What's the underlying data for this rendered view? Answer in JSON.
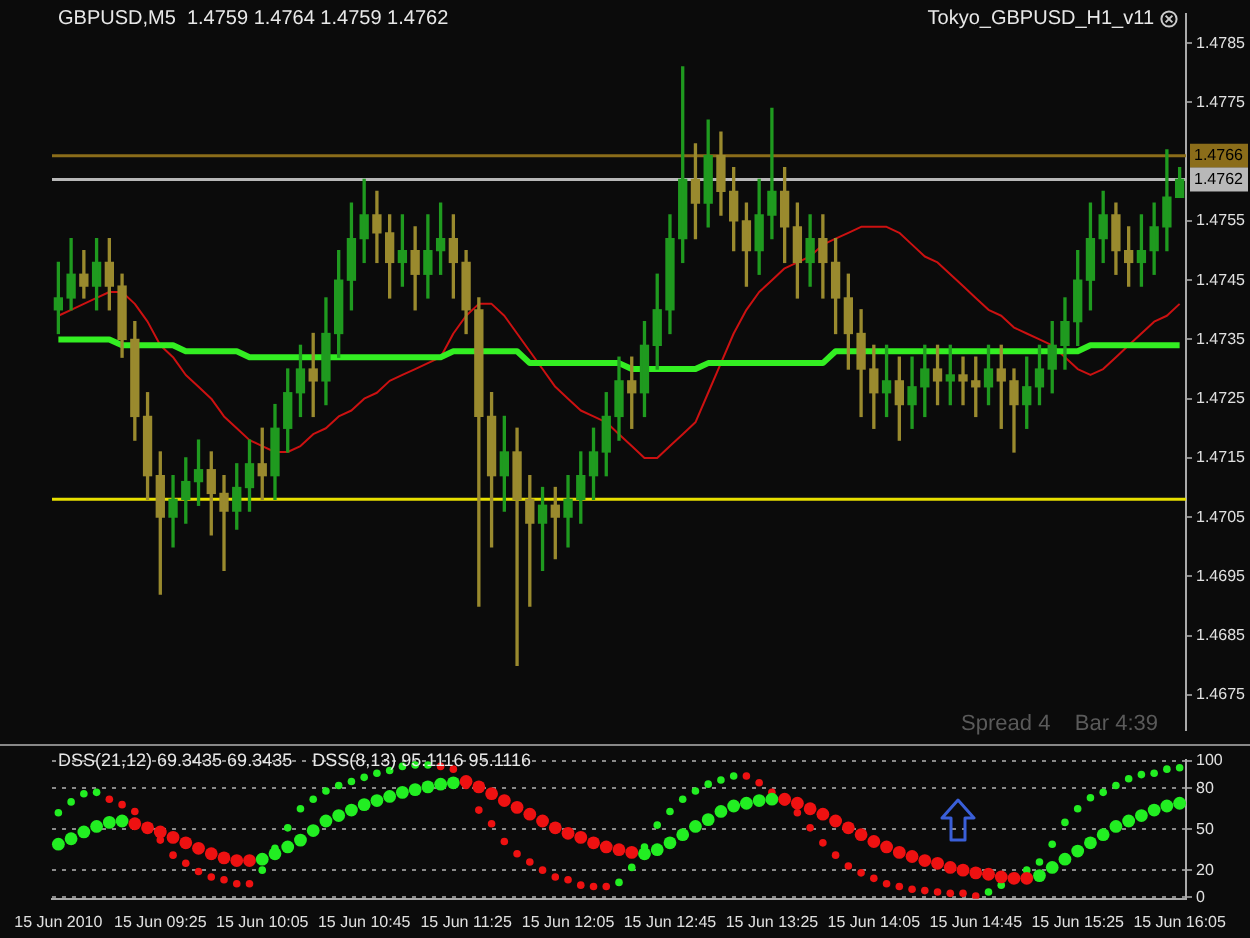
{
  "chart_data": [
    {
      "type": "candlestick",
      "title": "GBPUSD,M5  1.4759 1.4764 1.4759 1.4762",
      "annotations": [
        "Tokyo_GBPUSD_H1_v11",
        "Spread 4    Bar 4:39"
      ],
      "ohlc": [
        [
          1.474,
          1.4748,
          1.4736,
          1.4742
        ],
        [
          1.4742,
          1.4752,
          1.474,
          1.4746
        ],
        [
          1.4746,
          1.475,
          1.4742,
          1.4744
        ],
        [
          1.4744,
          1.4752,
          1.474,
          1.4748
        ],
        [
          1.4748,
          1.4752,
          1.474,
          1.4744
        ],
        [
          1.4744,
          1.4746,
          1.4732,
          1.4735
        ],
        [
          1.4735,
          1.4738,
          1.4718,
          1.4722
        ],
        [
          1.4722,
          1.4726,
          1.4708,
          1.4712
        ],
        [
          1.4712,
          1.4716,
          1.4692,
          1.4705
        ],
        [
          1.4705,
          1.4712,
          1.47,
          1.4708
        ],
        [
          1.4708,
          1.4715,
          1.4704,
          1.4711
        ],
        [
          1.4711,
          1.4718,
          1.4707,
          1.4713
        ],
        [
          1.4713,
          1.4716,
          1.4702,
          1.4709
        ],
        [
          1.4709,
          1.4712,
          1.4696,
          1.4706
        ],
        [
          1.4706,
          1.4714,
          1.4703,
          1.471
        ],
        [
          1.471,
          1.4718,
          1.4706,
          1.4714
        ],
        [
          1.4714,
          1.472,
          1.4708,
          1.4712
        ],
        [
          1.4712,
          1.4724,
          1.4708,
          1.472
        ],
        [
          1.472,
          1.473,
          1.4716,
          1.4726
        ],
        [
          1.4726,
          1.4734,
          1.4722,
          1.473
        ],
        [
          1.473,
          1.4736,
          1.4722,
          1.4728
        ],
        [
          1.4728,
          1.4742,
          1.4724,
          1.4736
        ],
        [
          1.4736,
          1.475,
          1.4732,
          1.4745
        ],
        [
          1.4745,
          1.4758,
          1.474,
          1.4752
        ],
        [
          1.4752,
          1.4762,
          1.4748,
          1.4756
        ],
        [
          1.4756,
          1.476,
          1.4748,
          1.4753
        ],
        [
          1.4753,
          1.4756,
          1.4742,
          1.4748
        ],
        [
          1.4748,
          1.4756,
          1.4744,
          1.475
        ],
        [
          1.475,
          1.4754,
          1.474,
          1.4746
        ],
        [
          1.4746,
          1.4756,
          1.4742,
          1.475
        ],
        [
          1.475,
          1.4758,
          1.4746,
          1.4752
        ],
        [
          1.4752,
          1.4756,
          1.4742,
          1.4748
        ],
        [
          1.4748,
          1.475,
          1.4736,
          1.474
        ],
        [
          1.474,
          1.4742,
          1.469,
          1.4722
        ],
        [
          1.4722,
          1.4726,
          1.47,
          1.4712
        ],
        [
          1.4712,
          1.4722,
          1.4706,
          1.4716
        ],
        [
          1.4716,
          1.472,
          1.468,
          1.4708
        ],
        [
          1.4708,
          1.4712,
          1.469,
          1.4704
        ],
        [
          1.4704,
          1.471,
          1.4696,
          1.4707
        ],
        [
          1.4707,
          1.471,
          1.4698,
          1.4705
        ],
        [
          1.4705,
          1.4712,
          1.47,
          1.4708
        ],
        [
          1.4708,
          1.4716,
          1.4704,
          1.4712
        ],
        [
          1.4712,
          1.472,
          1.4708,
          1.4716
        ],
        [
          1.4716,
          1.4726,
          1.4712,
          1.4722
        ],
        [
          1.4722,
          1.4732,
          1.4718,
          1.4728
        ],
        [
          1.4728,
          1.4732,
          1.472,
          1.4726
        ],
        [
          1.4726,
          1.4738,
          1.4722,
          1.4734
        ],
        [
          1.4734,
          1.4746,
          1.473,
          1.474
        ],
        [
          1.474,
          1.4756,
          1.4736,
          1.4752
        ],
        [
          1.4752,
          1.4781,
          1.4748,
          1.4762
        ],
        [
          1.4762,
          1.4768,
          1.4752,
          1.4758
        ],
        [
          1.4758,
          1.4772,
          1.4754,
          1.4766
        ],
        [
          1.4766,
          1.477,
          1.4756,
          1.476
        ],
        [
          1.476,
          1.4764,
          1.475,
          1.4755
        ],
        [
          1.4755,
          1.4758,
          1.4744,
          1.475
        ],
        [
          1.475,
          1.4762,
          1.4746,
          1.4756
        ],
        [
          1.4756,
          1.4774,
          1.4752,
          1.476
        ],
        [
          1.476,
          1.4764,
          1.4748,
          1.4754
        ],
        [
          1.4754,
          1.4758,
          1.4742,
          1.4748
        ],
        [
          1.4748,
          1.4756,
          1.4744,
          1.4752
        ],
        [
          1.4752,
          1.4756,
          1.4742,
          1.4748
        ],
        [
          1.4748,
          1.4752,
          1.4736,
          1.4742
        ],
        [
          1.4742,
          1.4746,
          1.473,
          1.4736
        ],
        [
          1.4736,
          1.474,
          1.4722,
          1.473
        ],
        [
          1.473,
          1.4734,
          1.472,
          1.4726
        ],
        [
          1.4726,
          1.4734,
          1.4722,
          1.4728
        ],
        [
          1.4728,
          1.4732,
          1.4718,
          1.4724
        ],
        [
          1.4724,
          1.4732,
          1.472,
          1.4727
        ],
        [
          1.4727,
          1.4734,
          1.4722,
          1.473
        ],
        [
          1.473,
          1.4734,
          1.4724,
          1.4728
        ],
        [
          1.4728,
          1.4734,
          1.4724,
          1.4729
        ],
        [
          1.4729,
          1.4732,
          1.4724,
          1.4728
        ],
        [
          1.4728,
          1.4732,
          1.4722,
          1.4727
        ],
        [
          1.4727,
          1.4734,
          1.4724,
          1.473
        ],
        [
          1.473,
          1.4734,
          1.472,
          1.4728
        ],
        [
          1.4728,
          1.473,
          1.4716,
          1.4724
        ],
        [
          1.4724,
          1.4732,
          1.472,
          1.4727
        ],
        [
          1.4727,
          1.4734,
          1.4724,
          1.473
        ],
        [
          1.473,
          1.4738,
          1.4726,
          1.4734
        ],
        [
          1.4734,
          1.4742,
          1.473,
          1.4738
        ],
        [
          1.4738,
          1.475,
          1.4734,
          1.4745
        ],
        [
          1.4745,
          1.4758,
          1.474,
          1.4752
        ],
        [
          1.4752,
          1.476,
          1.4748,
          1.4756
        ],
        [
          1.4756,
          1.4758,
          1.4746,
          1.475
        ],
        [
          1.475,
          1.4754,
          1.4744,
          1.4748
        ],
        [
          1.4748,
          1.4756,
          1.4744,
          1.475
        ],
        [
          1.475,
          1.4758,
          1.4746,
          1.4754
        ],
        [
          1.4754,
          1.4767,
          1.475,
          1.4759
        ],
        [
          1.4759,
          1.4764,
          1.4759,
          1.4762
        ]
      ],
      "colors": [
        "#1f9a1f",
        "#1f9a1f",
        "#9a8a2e",
        "#1f9a1f",
        "#9a8a2e",
        "#9a8a2e",
        "#9a8a2e",
        "#9a8a2e",
        "#9a8a2e",
        "#1f9a1f",
        "#1f9a1f",
        "#1f9a1f",
        "#9a8a2e",
        "#9a8a2e",
        "#1f9a1f",
        "#1f9a1f",
        "#9a8a2e",
        "#1f9a1f",
        "#1f9a1f",
        "#1f9a1f",
        "#9a8a2e",
        "#1f9a1f",
        "#1f9a1f",
        "#1f9a1f",
        "#1f9a1f",
        "#9a8a2e",
        "#9a8a2e",
        "#1f9a1f",
        "#9a8a2e",
        "#1f9a1f",
        "#1f9a1f",
        "#9a8a2e",
        "#9a8a2e",
        "#9a8a2e",
        "#9a8a2e",
        "#1f9a1f",
        "#9a8a2e",
        "#9a8a2e",
        "#1f9a1f",
        "#9a8a2e",
        "#1f9a1f",
        "#1f9a1f",
        "#1f9a1f",
        "#1f9a1f",
        "#1f9a1f",
        "#9a8a2e",
        "#1f9a1f",
        "#1f9a1f",
        "#1f9a1f",
        "#1f9a1f",
        "#9a8a2e",
        "#1f9a1f",
        "#9a8a2e",
        "#9a8a2e",
        "#9a8a2e",
        "#1f9a1f",
        "#1f9a1f",
        "#9a8a2e",
        "#9a8a2e",
        "#1f9a1f",
        "#9a8a2e",
        "#9a8a2e",
        "#9a8a2e",
        "#9a8a2e",
        "#9a8a2e",
        "#1f9a1f",
        "#9a8a2e",
        "#1f9a1f",
        "#1f9a1f",
        "#9a8a2e",
        "#1f9a1f",
        "#9a8a2e",
        "#9a8a2e",
        "#1f9a1f",
        "#9a8a2e",
        "#9a8a2e",
        "#1f9a1f",
        "#1f9a1f",
        "#1f9a1f",
        "#1f9a1f",
        "#1f9a1f",
        "#1f9a1f",
        "#1f9a1f",
        "#9a8a2e",
        "#9a8a2e",
        "#1f9a1f",
        "#1f9a1f",
        "#1f9a1f",
        "#1f9a1f"
      ],
      "series": [
        {
          "type": "line",
          "color": "#33ee22",
          "values": [
            1.4735,
            1.4735,
            1.4735,
            1.4735,
            1.4735,
            1.4734,
            1.4734,
            1.4734,
            1.4734,
            1.4734,
            1.4733,
            1.4733,
            1.4733,
            1.4733,
            1.4733,
            1.4732,
            1.4732,
            1.4732,
            1.4732,
            1.4732,
            1.4732,
            1.4732,
            1.4732,
            1.4732,
            1.4732,
            1.4732,
            1.4732,
            1.4732,
            1.4732,
            1.4732,
            1.4732,
            1.4733,
            1.4733,
            1.4733,
            1.4733,
            1.4733,
            1.4733,
            1.4731,
            1.4731,
            1.4731,
            1.4731,
            1.4731,
            1.4731,
            1.4731,
            1.4731,
            1.473,
            1.473,
            1.473,
            1.473,
            1.473,
            1.473,
            1.4731,
            1.4731,
            1.4731,
            1.4731,
            1.4731,
            1.4731,
            1.4731,
            1.4731,
            1.4731,
            1.4731,
            1.4733,
            1.4733,
            1.4733,
            1.4733,
            1.4733,
            1.4733,
            1.4733,
            1.4733,
            1.4733,
            1.4733,
            1.4733,
            1.4733,
            1.4733,
            1.4733,
            1.4733,
            1.4733,
            1.4733,
            1.4733,
            1.4733,
            1.4733,
            1.4734,
            1.4734,
            1.4734,
            1.4734,
            1.4734,
            1.4734,
            1.4734,
            1.4734
          ]
        },
        {
          "type": "line",
          "color": "#cc1111",
          "values": [
            1.4739,
            1.474,
            1.4741,
            1.4742,
            1.4743,
            1.4743,
            1.4741,
            1.4738,
            1.4734,
            1.4732,
            1.4729,
            1.4727,
            1.4725,
            1.4722,
            1.472,
            1.4718,
            1.4717,
            1.4716,
            1.4716,
            1.4717,
            1.4719,
            1.472,
            1.4722,
            1.4723,
            1.4725,
            1.4726,
            1.4728,
            1.4729,
            1.473,
            1.4731,
            1.4732,
            1.4736,
            1.4739,
            1.4741,
            1.4741,
            1.4739,
            1.4736,
            1.4733,
            1.473,
            1.4727,
            1.4725,
            1.4723,
            1.4722,
            1.4721,
            1.4719,
            1.4717,
            1.4715,
            1.4715,
            1.4717,
            1.4719,
            1.4721,
            1.4726,
            1.4731,
            1.4736,
            1.474,
            1.4743,
            1.4745,
            1.4747,
            1.4748,
            1.4749,
            1.4751,
            1.4752,
            1.4753,
            1.4754,
            1.4754,
            1.4754,
            1.4753,
            1.4751,
            1.4749,
            1.4748,
            1.4746,
            1.4744,
            1.4742,
            1.474,
            1.4739,
            1.4737,
            1.4736,
            1.4735,
            1.4734,
            1.4732,
            1.473,
            1.4729,
            1.473,
            1.4732,
            1.4734,
            1.4736,
            1.4738,
            1.4739,
            1.4741
          ]
        }
      ],
      "ref_lines": [
        {
          "axis": "y",
          "value": 1.4766,
          "label": "1.4766",
          "color": "#8b6d1a"
        },
        {
          "axis": "y",
          "value": 1.4762,
          "label": "1.4762",
          "color": "#b8b8b8"
        },
        {
          "axis": "y",
          "value": 1.4708,
          "color": "#e8e000"
        }
      ],
      "ylim": [
        1.4669,
        1.479
      ],
      "yticks": [
        1.4675,
        1.4685,
        1.4695,
        1.4705,
        1.4715,
        1.4725,
        1.4735,
        1.4745,
        1.4755,
        1.4775,
        1.4785
      ],
      "tick_labels": "y",
      "legend": false,
      "grid": false
    },
    {
      "type": "scatter",
      "marker": "circle",
      "annotations": [
        "DSS(21,12) 69.3435 69.3435",
        "DSS(8,13) 95.1116 95.1116"
      ],
      "categories": [
        "15 Jun 2010",
        null,
        null,
        null,
        null,
        null,
        null,
        null,
        "15 Jun 09:25",
        null,
        null,
        null,
        null,
        null,
        null,
        null,
        "15 Jun 10:05",
        null,
        null,
        null,
        null,
        null,
        null,
        null,
        "15 Jun 10:45",
        null,
        null,
        null,
        null,
        null,
        null,
        null,
        "15 Jun 11:25",
        null,
        null,
        null,
        null,
        null,
        null,
        null,
        "15 Jun 12:05",
        null,
        null,
        null,
        null,
        null,
        null,
        null,
        "15 Jun 12:45",
        null,
        null,
        null,
        null,
        null,
        null,
        null,
        "15 Jun 13:25",
        null,
        null,
        null,
        null,
        null,
        null,
        null,
        "15 Jun 14:05",
        null,
        null,
        null,
        null,
        null,
        null,
        null,
        "15 Jun 14:45",
        null,
        null,
        null,
        null,
        null,
        null,
        null,
        "15 Jun 15:25",
        null,
        null,
        null,
        null,
        null,
        null,
        null,
        "15 Jun 16:05"
      ],
      "series": [
        {
          "values": [
            39,
            43,
            48,
            52,
            55,
            56,
            54,
            51,
            48,
            44,
            40,
            36,
            32,
            29,
            27,
            27,
            28,
            32,
            37,
            42,
            49,
            56,
            60,
            64,
            68,
            71,
            74,
            77,
            79,
            81,
            83,
            84,
            85,
            81,
            76,
            71,
            66,
            61,
            56,
            51,
            47,
            44,
            40,
            37,
            35,
            33,
            32,
            35,
            40,
            46,
            52,
            57,
            63,
            67,
            69,
            71,
            72,
            72,
            69,
            65,
            61,
            56,
            51,
            46,
            41,
            37,
            33,
            30,
            27,
            25,
            22,
            20,
            18,
            17,
            15,
            14,
            14,
            16,
            22,
            28,
            34,
            40,
            46,
            52,
            56,
            60,
            64,
            67,
            69
          ],
          "colors": [
            "#22ee22",
            "#22ee22",
            "#22ee22",
            "#22ee22",
            "#22ee22",
            "#22ee22",
            "#ee1111",
            "#ee1111",
            "#ee1111",
            "#ee1111",
            "#ee1111",
            "#ee1111",
            "#ee1111",
            "#ee1111",
            "#ee1111",
            "#ee1111",
            "#22ee22",
            "#22ee22",
            "#22ee22",
            "#22ee22",
            "#22ee22",
            "#22ee22",
            "#22ee22",
            "#22ee22",
            "#22ee22",
            "#22ee22",
            "#22ee22",
            "#22ee22",
            "#22ee22",
            "#22ee22",
            "#22ee22",
            "#22ee22",
            "#ee1111",
            "#ee1111",
            "#ee1111",
            "#ee1111",
            "#ee1111",
            "#ee1111",
            "#ee1111",
            "#ee1111",
            "#ee1111",
            "#ee1111",
            "#ee1111",
            "#ee1111",
            "#ee1111",
            "#ee1111",
            "#22ee22",
            "#22ee22",
            "#22ee22",
            "#22ee22",
            "#22ee22",
            "#22ee22",
            "#22ee22",
            "#22ee22",
            "#22ee22",
            "#22ee22",
            "#22ee22",
            "#ee1111",
            "#ee1111",
            "#ee1111",
            "#ee1111",
            "#ee1111",
            "#ee1111",
            "#ee1111",
            "#ee1111",
            "#ee1111",
            "#ee1111",
            "#ee1111",
            "#ee1111",
            "#ee1111",
            "#ee1111",
            "#ee1111",
            "#ee1111",
            "#ee1111",
            "#ee1111",
            "#ee1111",
            "#ee1111",
            "#22ee22",
            "#22ee22",
            "#22ee22",
            "#22ee22",
            "#22ee22",
            "#22ee22",
            "#22ee22",
            "#22ee22",
            "#22ee22",
            "#22ee22",
            "#22ee22",
            "#22ee22"
          ]
        },
        {
          "values": [
            62,
            70,
            76,
            77,
            72,
            68,
            63,
            null,
            42,
            31,
            25,
            19,
            15,
            13,
            10,
            10,
            20,
            36,
            51,
            65,
            72,
            78,
            82,
            85,
            88,
            91,
            93,
            96,
            97,
            97,
            96,
            94,
            82,
            64,
            54,
            41,
            32,
            26,
            20,
            15,
            13,
            9,
            8,
            8,
            11,
            22,
            37,
            53,
            63,
            72,
            78,
            83,
            86,
            89,
            89,
            84,
            77,
            70,
            62,
            51,
            40,
            31,
            23,
            18,
            14,
            10,
            8,
            6,
            5,
            4,
            3,
            3,
            1,
            4,
            9,
            null,
            20,
            26,
            39,
            55,
            65,
            73,
            77,
            82,
            87,
            90,
            91,
            94,
            95
          ],
          "colors": [
            "#22ee22",
            "#22ee22",
            "#22ee22",
            "#22ee22",
            "#ee1111",
            "#ee1111",
            "#ee1111",
            "#ee1111",
            "#ee1111",
            "#ee1111",
            "#ee1111",
            "#ee1111",
            "#ee1111",
            "#ee1111",
            "#ee1111",
            "#ee1111",
            "#22ee22",
            "#22ee22",
            "#22ee22",
            "#22ee22",
            "#22ee22",
            "#22ee22",
            "#22ee22",
            "#22ee22",
            "#22ee22",
            "#22ee22",
            "#22ee22",
            "#22ee22",
            "#22ee22",
            "#22ee22",
            "#ee1111",
            "#ee1111",
            "#ee1111",
            "#ee1111",
            "#ee1111",
            "#ee1111",
            "#ee1111",
            "#ee1111",
            "#ee1111",
            "#ee1111",
            "#ee1111",
            "#ee1111",
            "#ee1111",
            "#ee1111",
            "#22ee22",
            "#22ee22",
            "#22ee22",
            "#22ee22",
            "#22ee22",
            "#22ee22",
            "#22ee22",
            "#22ee22",
            "#22ee22",
            "#22ee22",
            "#ee1111",
            "#ee1111",
            "#ee1111",
            "#ee1111",
            "#ee1111",
            "#ee1111",
            "#ee1111",
            "#ee1111",
            "#ee1111",
            "#ee1111",
            "#ee1111",
            "#ee1111",
            "#ee1111",
            "#ee1111",
            "#ee1111",
            "#ee1111",
            "#ee1111",
            "#ee1111",
            "#ee1111",
            "#22ee22",
            "#22ee22",
            "#22ee22",
            "#22ee22",
            "#22ee22",
            "#22ee22",
            "#22ee22",
            "#22ee22",
            "#22ee22",
            "#22ee22",
            "#22ee22",
            "#22ee22",
            "#22ee22",
            "#22ee22",
            "#22ee22",
            "#22ee22"
          ]
        }
      ],
      "ylim": [
        -1,
        101
      ],
      "yticks": [
        0,
        20,
        50,
        80,
        100
      ],
      "grid": "y",
      "legend": false
    }
  ]
}
